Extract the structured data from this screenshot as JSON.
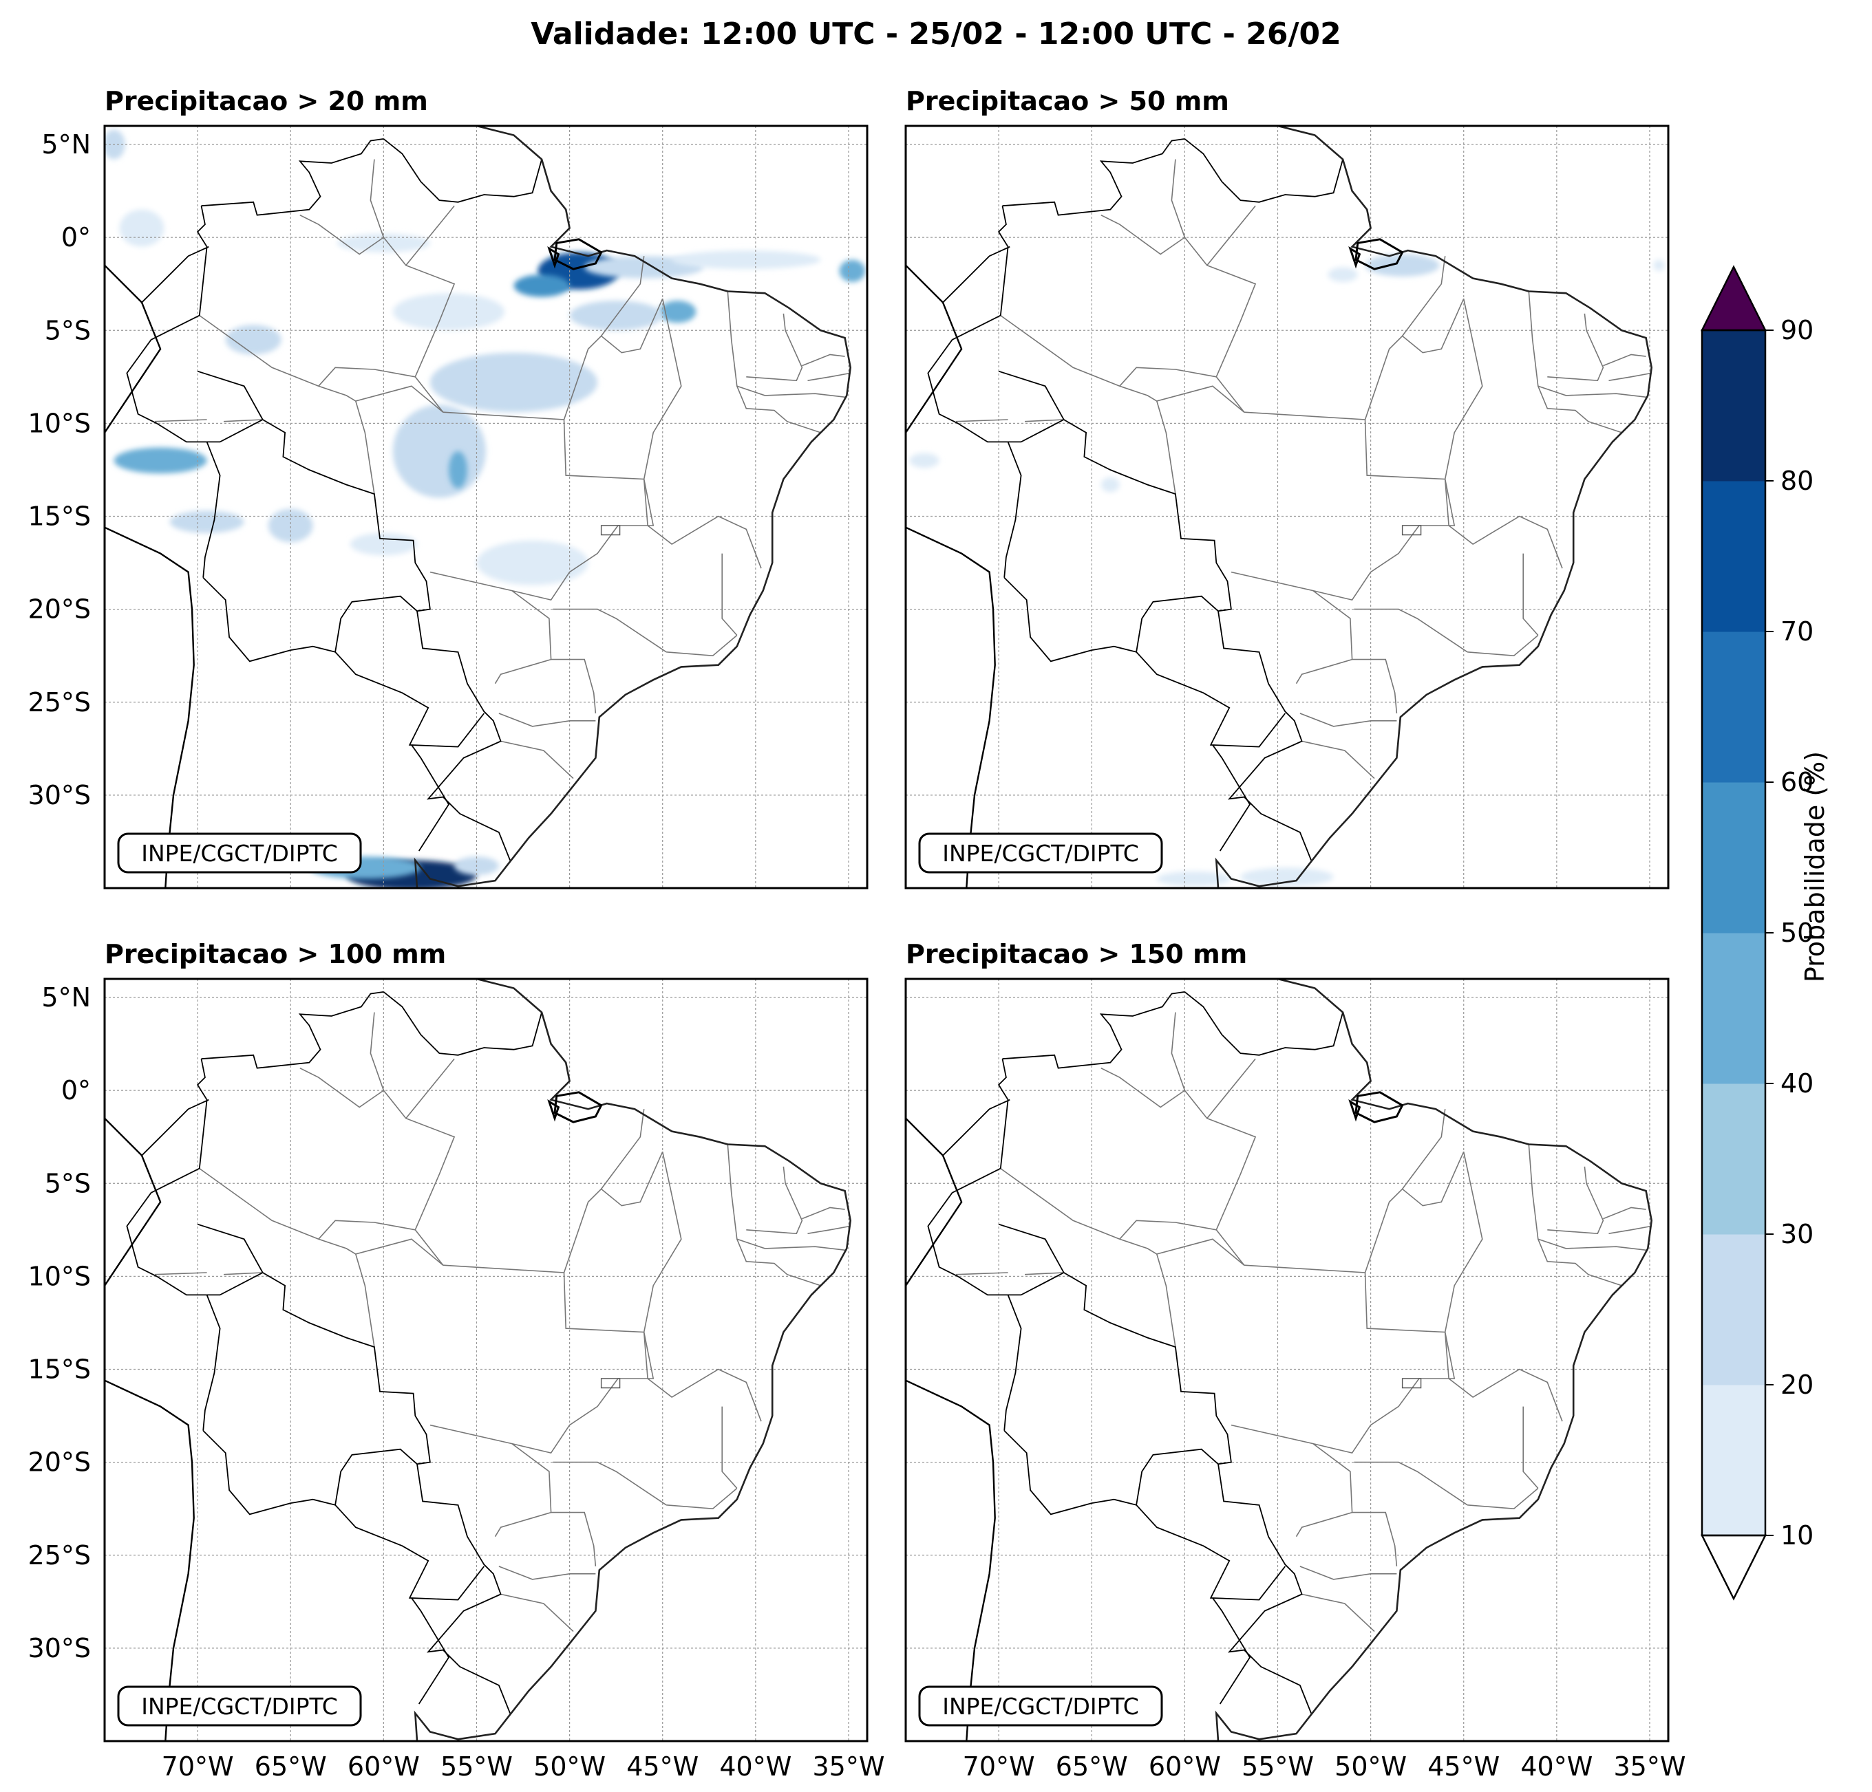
{
  "figure": {
    "title": "Validade: 12:00 UTC - 25/02 - 12:00 UTC - 26/02",
    "credit": "INPE/CGCT/DIPTC"
  },
  "map_extent": {
    "lon": [
      -75,
      -34
    ],
    "lat": [
      -35,
      6
    ]
  },
  "gridlines": {
    "lon_ticks": [
      {
        "value": -70,
        "label": "70°W"
      },
      {
        "value": -65,
        "label": "65°W"
      },
      {
        "value": -60,
        "label": "60°W"
      },
      {
        "value": -55,
        "label": "55°W"
      },
      {
        "value": -50,
        "label": "50°W"
      },
      {
        "value": -45,
        "label": "45°W"
      },
      {
        "value": -40,
        "label": "40°W"
      },
      {
        "value": -35,
        "label": "35°W"
      }
    ],
    "lat_ticks": [
      {
        "value": 5,
        "label": "5°N"
      },
      {
        "value": 0,
        "label": "0°"
      },
      {
        "value": -5,
        "label": "5°S"
      },
      {
        "value": -10,
        "label": "10°S"
      },
      {
        "value": -15,
        "label": "15°S"
      },
      {
        "value": -20,
        "label": "20°S"
      },
      {
        "value": -25,
        "label": "25°S"
      },
      {
        "value": -30,
        "label": "30°S"
      }
    ]
  },
  "panels": [
    {
      "title": "Precipitacao > 20 mm",
      "precip_areas": [
        {
          "lon": -49.5,
          "lat": -1.8,
          "rx": 2.2,
          "ry": 1.0,
          "prob": 75
        },
        {
          "lon": -51.5,
          "lat": -2.6,
          "rx": 1.5,
          "ry": 0.6,
          "prob": 55
        },
        {
          "lon": -46.0,
          "lat": -1.6,
          "rx": 3.2,
          "ry": 0.6,
          "prob": 25
        },
        {
          "lon": -40.5,
          "lat": -1.2,
          "rx": 4.0,
          "ry": 0.5,
          "prob": 15
        },
        {
          "lon": -34.8,
          "lat": -1.8,
          "rx": 0.7,
          "ry": 0.6,
          "prob": 45
        },
        {
          "lon": -44.2,
          "lat": -4.0,
          "rx": 1.0,
          "ry": 0.6,
          "prob": 45
        },
        {
          "lon": -47.5,
          "lat": -4.2,
          "rx": 2.5,
          "ry": 0.8,
          "prob": 20
        },
        {
          "lon": -53.0,
          "lat": -7.8,
          "rx": 4.5,
          "ry": 1.6,
          "prob": 20
        },
        {
          "lon": -56.5,
          "lat": -4.0,
          "rx": 3.0,
          "ry": 1.0,
          "prob": 15
        },
        {
          "lon": -60.0,
          "lat": -0.3,
          "rx": 2.5,
          "ry": 0.5,
          "prob": 15
        },
        {
          "lon": -72.0,
          "lat": -12.0,
          "rx": 2.5,
          "ry": 0.7,
          "prob": 45
        },
        {
          "lon": -69.5,
          "lat": -15.3,
          "rx": 2.0,
          "ry": 0.6,
          "prob": 20
        },
        {
          "lon": -65.0,
          "lat": -15.5,
          "rx": 1.2,
          "ry": 0.9,
          "prob": 25
        },
        {
          "lon": -57.0,
          "lat": -11.5,
          "rx": 2.5,
          "ry": 2.5,
          "prob": 20
        },
        {
          "lon": -56.0,
          "lat": -12.5,
          "rx": 0.5,
          "ry": 1.0,
          "prob": 45
        },
        {
          "lon": -60.0,
          "lat": -16.5,
          "rx": 1.8,
          "ry": 0.6,
          "prob": 15
        },
        {
          "lon": -52.0,
          "lat": -17.5,
          "rx": 3.0,
          "ry": 1.2,
          "prob": 15
        },
        {
          "lon": -74.5,
          "lat": 5.0,
          "rx": 0.6,
          "ry": 0.8,
          "prob": 25
        },
        {
          "lon": -73.0,
          "lat": 0.5,
          "rx": 1.2,
          "ry": 1.0,
          "prob": 15
        },
        {
          "lon": -67.0,
          "lat": -5.5,
          "rx": 1.5,
          "ry": 0.8,
          "prob": 20
        },
        {
          "lon": -58.5,
          "lat": -34.3,
          "rx": 3.5,
          "ry": 0.8,
          "prob": 85
        },
        {
          "lon": -61.0,
          "lat": -33.9,
          "rx": 3.0,
          "ry": 0.6,
          "prob": 45
        },
        {
          "lon": -55.0,
          "lat": -33.8,
          "rx": 1.2,
          "ry": 0.5,
          "prob": 25
        }
      ]
    },
    {
      "title": "Precipitacao > 50 mm",
      "precip_areas": [
        {
          "lon": -48.3,
          "lat": -1.5,
          "rx": 2.0,
          "ry": 0.6,
          "prob": 20
        },
        {
          "lon": -51.5,
          "lat": -2.0,
          "rx": 0.8,
          "ry": 0.4,
          "prob": 15
        },
        {
          "lon": -54.5,
          "lat": -34.4,
          "rx": 2.5,
          "ry": 0.5,
          "prob": 15
        },
        {
          "lon": -59.5,
          "lat": -34.5,
          "rx": 2.0,
          "ry": 0.4,
          "prob": 12
        },
        {
          "lon": -74.0,
          "lat": -12.0,
          "rx": 0.8,
          "ry": 0.4,
          "prob": 12
        },
        {
          "lon": -64.0,
          "lat": -13.3,
          "rx": 0.5,
          "ry": 0.4,
          "prob": 12
        },
        {
          "lon": -34.5,
          "lat": -1.5,
          "rx": 0.3,
          "ry": 0.3,
          "prob": 12
        }
      ]
    },
    {
      "title": "Precipitacao > 100 mm",
      "precip_areas": []
    },
    {
      "title": "Precipitacao > 150 mm",
      "precip_areas": []
    }
  ],
  "colorbar": {
    "label": "Probabilidade (%)",
    "levels": [
      10,
      20,
      30,
      40,
      50,
      60,
      70,
      80,
      90
    ],
    "colors": [
      "#deebf7",
      "#c6dbef",
      "#9ecae1",
      "#6baed6",
      "#4292c6",
      "#2171b5",
      "#08519c",
      "#08306b"
    ],
    "over_color": "#4a0050",
    "under_color": "#ffffff"
  }
}
